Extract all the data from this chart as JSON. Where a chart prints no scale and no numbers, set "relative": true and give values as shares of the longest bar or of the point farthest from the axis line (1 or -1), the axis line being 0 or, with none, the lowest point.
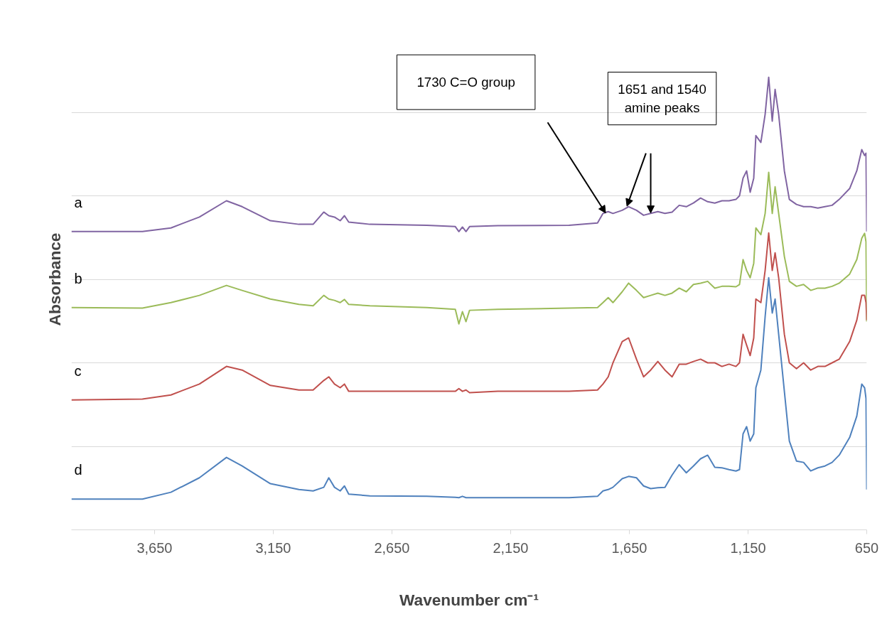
{
  "chart_data": {
    "type": "line",
    "relative": true,
    "xlabel": "Wavenumber cm⁻¹",
    "ylabel": "Absorbance",
    "xlim": [
      4000,
      650
    ],
    "xticks": [
      {
        "value": 3650,
        "label": "3,650"
      },
      {
        "value": 3150,
        "label": "3,150"
      },
      {
        "value": 2650,
        "label": "2,650"
      },
      {
        "value": 2150,
        "label": "2,150"
      },
      {
        "value": 1650,
        "label": "1,650"
      },
      {
        "value": 1150,
        "label": "1,150"
      },
      {
        "value": 650,
        "label": "650"
      }
    ],
    "grid": "y",
    "line_style": "solid",
    "marker": "none",
    "x": [
      4000,
      3701,
      3581,
      3461,
      3347,
      3281,
      3162,
      3042,
      2982,
      2937,
      2916,
      2892,
      2868,
      2850,
      2832,
      2743,
      2503,
      2383,
      2368,
      2353,
      2338,
      2323,
      2204,
      1904,
      1784,
      1761,
      1739,
      1719,
      1680,
      1653,
      1620,
      1590,
      1560,
      1530,
      1500,
      1470,
      1440,
      1410,
      1380,
      1350,
      1320,
      1290,
      1260,
      1230,
      1201,
      1186,
      1171,
      1156,
      1141,
      1126,
      1117,
      1096,
      1078,
      1063,
      1048,
      1036,
      1021,
      997,
      976,
      946,
      916,
      886,
      856,
      826,
      796,
      766,
      722,
      692,
      671,
      659,
      653,
      650
    ],
    "series": [
      {
        "name": "a",
        "color": "#8064a2",
        "values": [
          0.659,
          0.659,
          0.667,
          0.691,
          0.727,
          0.714,
          0.683,
          0.675,
          0.675,
          0.702,
          0.694,
          0.691,
          0.683,
          0.694,
          0.68,
          0.675,
          0.673,
          0.67,
          0.659,
          0.669,
          0.659,
          0.67,
          0.672,
          0.673,
          0.678,
          0.699,
          0.703,
          0.699,
          0.706,
          0.714,
          0.706,
          0.695,
          0.699,
          0.703,
          0.699,
          0.702,
          0.717,
          0.714,
          0.722,
          0.733,
          0.725,
          0.722,
          0.727,
          0.727,
          0.73,
          0.738,
          0.777,
          0.793,
          0.746,
          0.777,
          0.871,
          0.856,
          0.918,
          1.0,
          0.903,
          0.973,
          0.918,
          0.793,
          0.73,
          0.719,
          0.714,
          0.714,
          0.711,
          0.714,
          0.717,
          0.73,
          0.754,
          0.793,
          0.84,
          0.827,
          0.832,
          0.659
        ]
      },
      {
        "name": "b",
        "color": "#9bbb59",
        "values": [
          0.491,
          0.49,
          0.502,
          0.518,
          0.54,
          0.529,
          0.51,
          0.498,
          0.495,
          0.518,
          0.51,
          0.507,
          0.502,
          0.509,
          0.498,
          0.495,
          0.491,
          0.487,
          0.455,
          0.482,
          0.46,
          0.485,
          0.487,
          0.49,
          0.491,
          0.502,
          0.513,
          0.502,
          0.526,
          0.545,
          0.529,
          0.513,
          0.518,
          0.523,
          0.518,
          0.523,
          0.534,
          0.526,
          0.542,
          0.545,
          0.549,
          0.534,
          0.538,
          0.538,
          0.537,
          0.542,
          0.597,
          0.573,
          0.557,
          0.589,
          0.667,
          0.652,
          0.699,
          0.79,
          0.699,
          0.758,
          0.699,
          0.604,
          0.549,
          0.538,
          0.542,
          0.529,
          0.534,
          0.534,
          0.538,
          0.545,
          0.565,
          0.597,
          0.644,
          0.655,
          0.636,
          0.46
        ]
      },
      {
        "name": "c",
        "color": "#c0504d",
        "values": [
          0.287,
          0.289,
          0.298,
          0.322,
          0.361,
          0.353,
          0.319,
          0.309,
          0.309,
          0.33,
          0.338,
          0.322,
          0.314,
          0.322,
          0.306,
          0.306,
          0.306,
          0.306,
          0.312,
          0.306,
          0.309,
          0.303,
          0.306,
          0.306,
          0.309,
          0.322,
          0.338,
          0.369,
          0.416,
          0.424,
          0.377,
          0.338,
          0.353,
          0.372,
          0.353,
          0.338,
          0.366,
          0.366,
          0.372,
          0.377,
          0.369,
          0.369,
          0.361,
          0.366,
          0.361,
          0.369,
          0.432,
          0.408,
          0.385,
          0.424,
          0.51,
          0.502,
          0.573,
          0.656,
          0.573,
          0.612,
          0.557,
          0.432,
          0.369,
          0.356,
          0.369,
          0.353,
          0.361,
          0.361,
          0.369,
          0.377,
          0.416,
          0.463,
          0.518,
          0.518,
          0.502,
          0.463
        ]
      },
      {
        "name": "d",
        "color": "#4f81bd",
        "values": [
          0.068,
          0.068,
          0.083,
          0.115,
          0.16,
          0.141,
          0.102,
          0.089,
          0.086,
          0.094,
          0.115,
          0.094,
          0.086,
          0.097,
          0.079,
          0.075,
          0.074,
          0.072,
          0.071,
          0.074,
          0.071,
          0.071,
          0.071,
          0.071,
          0.074,
          0.086,
          0.089,
          0.094,
          0.113,
          0.118,
          0.115,
          0.097,
          0.091,
          0.093,
          0.094,
          0.121,
          0.144,
          0.126,
          0.141,
          0.157,
          0.165,
          0.138,
          0.137,
          0.133,
          0.13,
          0.133,
          0.212,
          0.228,
          0.196,
          0.212,
          0.314,
          0.353,
          0.471,
          0.557,
          0.479,
          0.51,
          0.432,
          0.306,
          0.196,
          0.152,
          0.149,
          0.13,
          0.137,
          0.141,
          0.149,
          0.165,
          0.204,
          0.251,
          0.322,
          0.314,
          0.29,
          0.089
        ]
      }
    ],
    "annotations": [
      "1730 C=O group",
      "1651 and 1540 amine peaks"
    ]
  }
}
